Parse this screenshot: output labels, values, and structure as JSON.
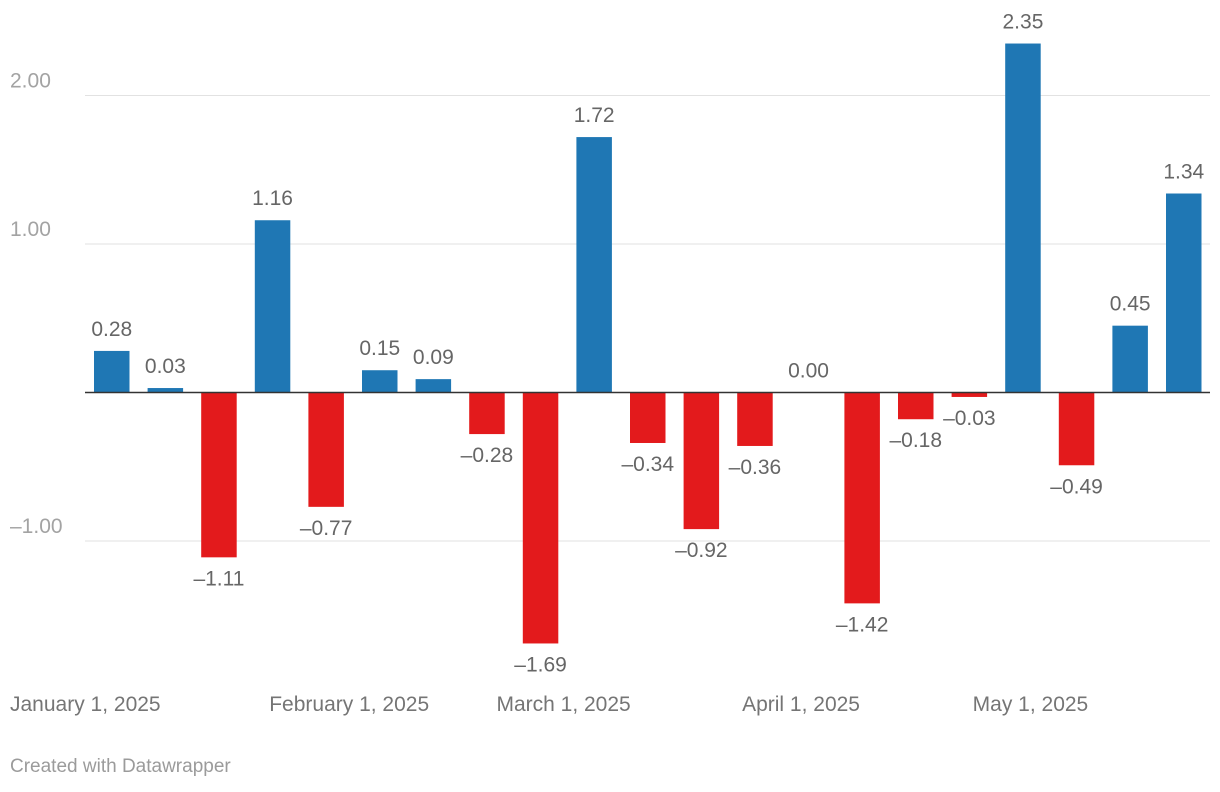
{
  "chart_data": {
    "type": "bar",
    "categories": [
      "2025-01-01",
      "2025-01-08",
      "2025-01-15",
      "2025-01-22",
      "2025-01-29",
      "2025-02-05",
      "2025-02-12",
      "2025-02-19",
      "2025-02-26",
      "2025-03-05",
      "2025-03-12",
      "2025-03-19",
      "2025-03-26",
      "2025-04-02",
      "2025-04-09",
      "2025-04-16",
      "2025-04-23",
      "2025-04-30",
      "2025-05-07",
      "2025-05-14",
      "2025-05-21"
    ],
    "values": [
      0.28,
      0.03,
      -1.11,
      1.16,
      -0.77,
      0.15,
      0.09,
      -0.28,
      -1.69,
      1.72,
      -0.34,
      -0.92,
      -0.36,
      0.0,
      -1.42,
      -0.18,
      -0.03,
      2.35,
      -0.49,
      0.45,
      1.34
    ],
    "data_labels": [
      "0.28",
      "0.03",
      "–1.11",
      "1.16",
      "–0.77",
      "0.15",
      "0.09",
      "–0.28",
      "–1.69",
      "1.72",
      "–0.34",
      "–0.92",
      "–0.36",
      "0.00",
      "–1.42",
      "–0.18",
      "–0.03",
      "2.35",
      "–0.49",
      "0.45",
      "1.34"
    ],
    "ylim": [
      -1.7,
      2.35
    ],
    "y_ticks": [
      {
        "value": 2,
        "label": "2.00"
      },
      {
        "value": 1,
        "label": "1.00"
      },
      {
        "value": -1,
        "label": "–1.00"
      }
    ],
    "x_ticks": [
      {
        "index": 0,
        "label": "January 1, 2025"
      },
      {
        "index": 4.43,
        "label": "February 1, 2025"
      },
      {
        "index": 8.43,
        "label": "March 1, 2025"
      },
      {
        "index": 12.86,
        "label": "April 1, 2025"
      },
      {
        "index": 17.14,
        "label": "May 1, 2025"
      }
    ],
    "grid": true,
    "colors": {
      "positive": "#1f77b4",
      "negative": "#e31a1c",
      "zero_line": "#333333",
      "grid": "#e2e2e2"
    }
  },
  "footer": {
    "credit": "Created with Datawrapper"
  }
}
